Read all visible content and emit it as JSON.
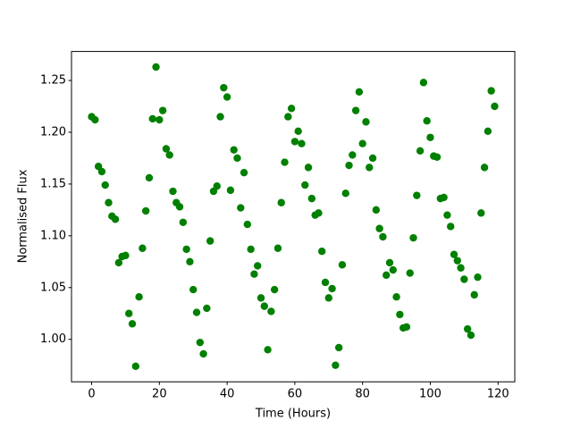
{
  "chart_data": {
    "type": "scatter",
    "xlabel": "Time (Hours)",
    "ylabel": "Normalised Flux",
    "color": "#008000",
    "x": [
      0,
      1,
      2,
      3,
      4,
      5,
      6,
      7,
      8,
      9,
      10,
      11,
      12,
      13,
      14,
      15,
      16,
      17,
      18,
      19,
      20,
      21,
      22,
      23,
      24,
      25,
      26,
      27,
      28,
      29,
      30,
      31,
      32,
      33,
      34,
      35,
      36,
      37,
      38,
      39,
      40,
      41,
      42,
      43,
      44,
      45,
      46,
      47,
      48,
      49,
      50,
      51,
      52,
      53,
      54,
      55,
      56,
      57,
      58,
      59,
      60,
      61,
      62,
      63,
      64,
      65,
      66,
      67,
      68,
      69,
      70,
      71,
      72,
      73,
      74,
      75,
      76,
      77,
      78,
      79,
      80,
      81,
      82,
      83,
      84,
      85,
      86,
      87,
      88,
      89,
      90,
      91,
      92,
      93,
      94,
      95,
      96,
      97,
      98,
      99,
      100,
      101,
      102,
      103,
      104,
      105,
      106,
      107,
      108,
      109,
      110,
      111,
      112,
      113,
      114,
      115,
      116,
      117,
      118,
      119
    ],
    "values": [
      1.215,
      1.212,
      1.167,
      1.162,
      1.149,
      1.132,
      1.119,
      1.116,
      1.074,
      1.08,
      1.081,
      1.025,
      1.015,
      0.974,
      1.041,
      1.088,
      1.124,
      1.156,
      1.213,
      1.263,
      1.212,
      1.221,
      1.184,
      1.178,
      1.143,
      1.132,
      1.128,
      1.113,
      1.087,
      1.075,
      1.048,
      1.026,
      0.997,
      0.986,
      1.03,
      1.095,
      1.143,
      1.148,
      1.215,
      1.243,
      1.234,
      1.144,
      1.183,
      1.175,
      1.127,
      1.161,
      1.111,
      1.087,
      1.063,
      1.071,
      1.04,
      1.032,
      0.99,
      1.027,
      1.048,
      1.088,
      1.132,
      1.171,
      1.215,
      1.223,
      1.191,
      1.201,
      1.189,
      1.149,
      1.166,
      1.136,
      1.12,
      1.122,
      1.085,
      1.055,
      1.04,
      1.049,
      0.975,
      0.992,
      1.072,
      1.141,
      1.168,
      1.178,
      1.221,
      1.239,
      1.189,
      1.21,
      1.166,
      1.175,
      1.125,
      1.107,
      1.099,
      1.062,
      1.074,
      1.067,
      1.041,
      1.024,
      1.011,
      1.012,
      1.064,
      1.098,
      1.139,
      1.182,
      1.248,
      1.211,
      1.195,
      1.177,
      1.176,
      1.136,
      1.137,
      1.12,
      1.109,
      1.082,
      1.076,
      1.069,
      1.058,
      1.01,
      1.004,
      1.043,
      1.06,
      1.122,
      1.166,
      1.201,
      1.24,
      1.225
    ],
    "xlim": [
      -5.95,
      124.95
    ],
    "xticks": [
      0,
      20,
      40,
      60,
      80,
      100,
      120
    ],
    "ylim": [
      0.959,
      1.278
    ],
    "yticks": [
      {
        "value": 1.0,
        "label": "1.00"
      },
      {
        "value": 1.05,
        "label": "1.05"
      },
      {
        "value": 1.1,
        "label": "1.10"
      },
      {
        "value": 1.15,
        "label": "1.15"
      },
      {
        "value": 1.2,
        "label": "1.20"
      },
      {
        "value": 1.25,
        "label": "1.25"
      }
    ]
  }
}
